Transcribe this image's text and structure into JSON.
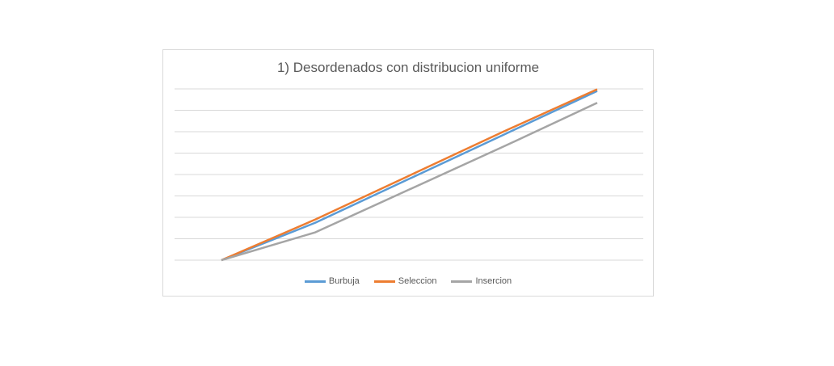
{
  "chart_data": {
    "type": "line",
    "title": "1) Desordenados con distribucion uniforme",
    "xlabel": "",
    "ylabel": "",
    "x": [
      1,
      2,
      3,
      4,
      5
    ],
    "ylim": [
      0,
      8
    ],
    "grid": true,
    "legend_position": "bottom",
    "series": [
      {
        "name": "Burbuja",
        "color": "#5b9bd5",
        "values": [
          0,
          1.75,
          3.8,
          5.85,
          7.9
        ]
      },
      {
        "name": "Seleccion",
        "color": "#ed7d31",
        "values": [
          0,
          1.9,
          3.95,
          6.0,
          7.98
        ]
      },
      {
        "name": "Insercion",
        "color": "#a5a5a5",
        "values": [
          0,
          1.3,
          3.3,
          5.3,
          7.35
        ]
      }
    ]
  }
}
